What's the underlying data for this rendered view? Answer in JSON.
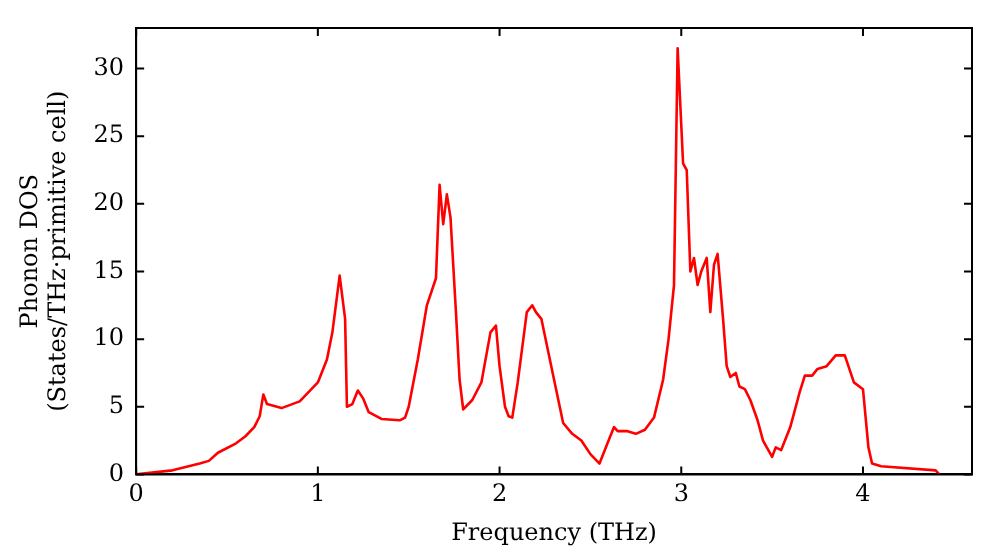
{
  "chart_data": {
    "type": "line",
    "xlabel": "Frequency (THz)",
    "ylabel": "Phonon DOS\n(States/THz·primitive cell)",
    "xlim": [
      0,
      4.6
    ],
    "ylim": [
      0,
      33
    ],
    "xticks": [
      0,
      1,
      2,
      3,
      4
    ],
    "yticks": [
      0,
      5,
      10,
      15,
      20,
      25,
      30
    ],
    "grid": false,
    "legend": false,
    "marker": "none",
    "line_style": "solid",
    "series": [
      {
        "color": "#ff0000",
        "x": [
          0,
          0.2,
          0.35,
          0.4,
          0.45,
          0.55,
          0.6,
          0.65,
          0.68,
          0.7,
          0.72,
          0.8,
          0.9,
          1.0,
          1.05,
          1.08,
          1.12,
          1.15,
          1.16,
          1.19,
          1.22,
          1.25,
          1.28,
          1.35,
          1.45,
          1.48,
          1.5,
          1.55,
          1.6,
          1.65,
          1.67,
          1.69,
          1.71,
          1.73,
          1.76,
          1.78,
          1.8,
          1.85,
          1.9,
          1.95,
          1.98,
          2.0,
          2.03,
          2.05,
          2.07,
          2.1,
          2.15,
          2.18,
          2.2,
          2.23,
          2.3,
          2.35,
          2.4,
          2.45,
          2.5,
          2.55,
          2.6,
          2.63,
          2.65,
          2.7,
          2.75,
          2.8,
          2.85,
          2.9,
          2.93,
          2.96,
          2.98,
          3.01,
          3.03,
          3.05,
          3.07,
          3.09,
          3.11,
          3.14,
          3.16,
          3.18,
          3.2,
          3.23,
          3.25,
          3.27,
          3.3,
          3.32,
          3.35,
          3.38,
          3.42,
          3.45,
          3.5,
          3.52,
          3.55,
          3.6,
          3.65,
          3.68,
          3.72,
          3.75,
          3.8,
          3.85,
          3.9,
          3.95,
          4.0,
          4.03,
          4.05,
          4.1,
          4.4,
          4.42
        ],
        "values": [
          0,
          0.3,
          0.8,
          1.0,
          1.6,
          2.3,
          2.8,
          3.5,
          4.3,
          5.9,
          5.2,
          4.9,
          5.4,
          6.8,
          8.5,
          10.5,
          14.7,
          11.5,
          5.0,
          5.2,
          6.2,
          5.6,
          4.6,
          4.1,
          4.0,
          4.2,
          5.0,
          8.5,
          12.5,
          14.5,
          21.4,
          18.5,
          20.7,
          19.0,
          12.0,
          7.0,
          4.8,
          5.5,
          6.8,
          10.5,
          11.0,
          8.0,
          5.0,
          4.3,
          4.2,
          6.8,
          12.0,
          12.5,
          12.0,
          11.5,
          7.0,
          3.8,
          3.0,
          2.5,
          1.5,
          0.8,
          2.5,
          3.5,
          3.2,
          3.2,
          3.0,
          3.3,
          4.2,
          7.0,
          10.0,
          14.0,
          31.5,
          23.0,
          22.5,
          15.0,
          16.0,
          14.0,
          15.0,
          16.0,
          12.0,
          15.5,
          16.3,
          11.5,
          8.0,
          7.2,
          7.5,
          6.5,
          6.3,
          5.5,
          4.0,
          2.5,
          1.3,
          2.0,
          1.8,
          3.5,
          6.0,
          7.3,
          7.3,
          7.8,
          8.0,
          8.8,
          8.8,
          6.8,
          6.3,
          2.0,
          0.8,
          0.6,
          0.3,
          0
        ]
      }
    ]
  }
}
